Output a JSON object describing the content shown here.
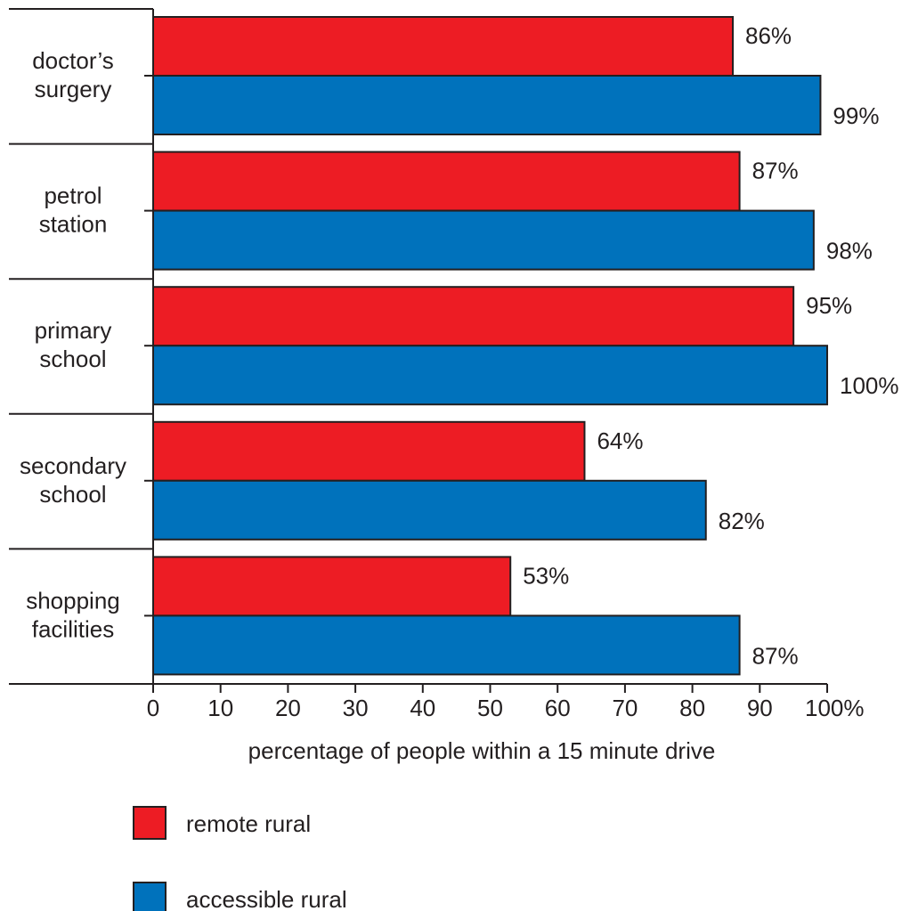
{
  "chart_data": {
    "type": "bar",
    "orientation": "horizontal",
    "categories": [
      [
        "doctor’s",
        "surgery"
      ],
      [
        "petrol",
        "station"
      ],
      [
        "primary",
        "school"
      ],
      [
        "secondary",
        "school"
      ],
      [
        "shopping",
        "facilities"
      ]
    ],
    "series": [
      {
        "name": "remote rural",
        "color": "#ed1c24",
        "values": [
          86,
          87,
          95,
          64,
          53
        ]
      },
      {
        "name": "accessible rural",
        "color": "#0072bc",
        "values": [
          99,
          98,
          100,
          82,
          87
        ]
      }
    ],
    "value_suffix": "%",
    "xlabel": "percentage of people within a 15 minute drive",
    "x_ticks": [
      0,
      10,
      20,
      30,
      40,
      50,
      60,
      70,
      80,
      90,
      100
    ],
    "x_last_tick_suffix": "%",
    "xlim": [
      0,
      100
    ],
    "grid": false,
    "legend_placement": "bottom"
  }
}
